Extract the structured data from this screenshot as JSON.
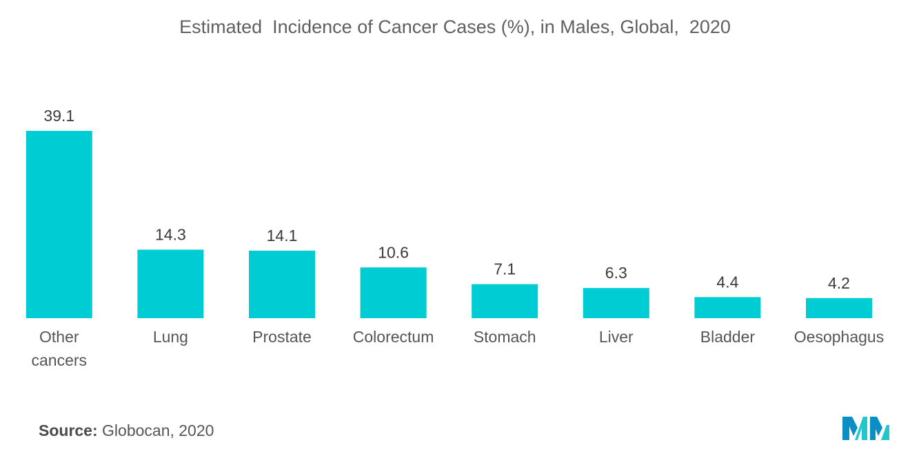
{
  "chart_data": {
    "type": "bar",
    "title": "Estimated  Incidence of Cancer Cases (%), in Males, Global,  2020",
    "categories": [
      [
        "Other",
        "cancers"
      ],
      [
        "Lung"
      ],
      [
        "Prostate"
      ],
      [
        "Colorectum"
      ],
      [
        "Stomach"
      ],
      [
        "Liver"
      ],
      [
        "Bladder"
      ],
      [
        "Oesophagus"
      ]
    ],
    "values": [
      39.1,
      14.3,
      14.1,
      10.6,
      7.1,
      6.3,
      4.4,
      4.2
    ],
    "value_labels": [
      "39.1",
      "14.3",
      "14.1",
      "10.6",
      "7.1",
      "6.3",
      "4.4",
      "4.2"
    ],
    "bar_color": "#00cdd3",
    "xlabel": "",
    "ylabel": "",
    "grid": false,
    "legend": "none",
    "y_axis_shown": false
  },
  "source": {
    "label": "Source:",
    "text": "Globocan, 2020"
  },
  "logo": {
    "icon": "mordor-intelligence-logo-icon",
    "colors": [
      "#0a8fc4",
      "#22c7c9"
    ]
  }
}
